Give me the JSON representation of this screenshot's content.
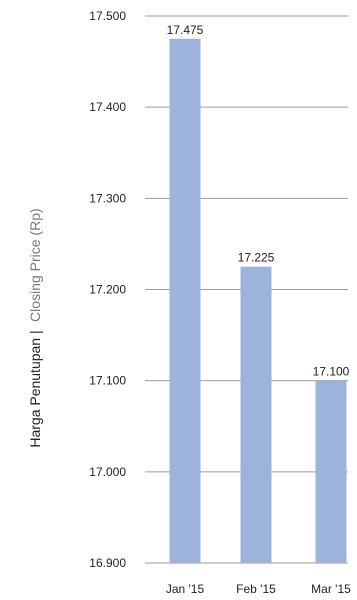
{
  "chart_data": {
    "type": "bar",
    "categories": [
      "Jan '15",
      "Feb '15",
      "Mar '15"
    ],
    "values": [
      17475,
      17225,
      17100
    ],
    "data_labels": [
      "17.475",
      "17.225",
      "17.100"
    ],
    "title": "",
    "xlabel": "",
    "ylabel_main": "Harga Penutupan |",
    "ylabel_sub": "Closing Price (Rp)",
    "ylim": [
      16900,
      17500
    ],
    "yticks": [
      16900,
      17000,
      17100,
      17200,
      17300,
      17400,
      17500
    ],
    "ytick_labels": [
      "16.900",
      "17.000",
      "17.100",
      "17.200",
      "17.300",
      "17.400",
      "17.500"
    ],
    "grid": true,
    "legend": "none",
    "colors": {
      "bar": "#9db3db",
      "grid": "#9a9a9a"
    }
  }
}
